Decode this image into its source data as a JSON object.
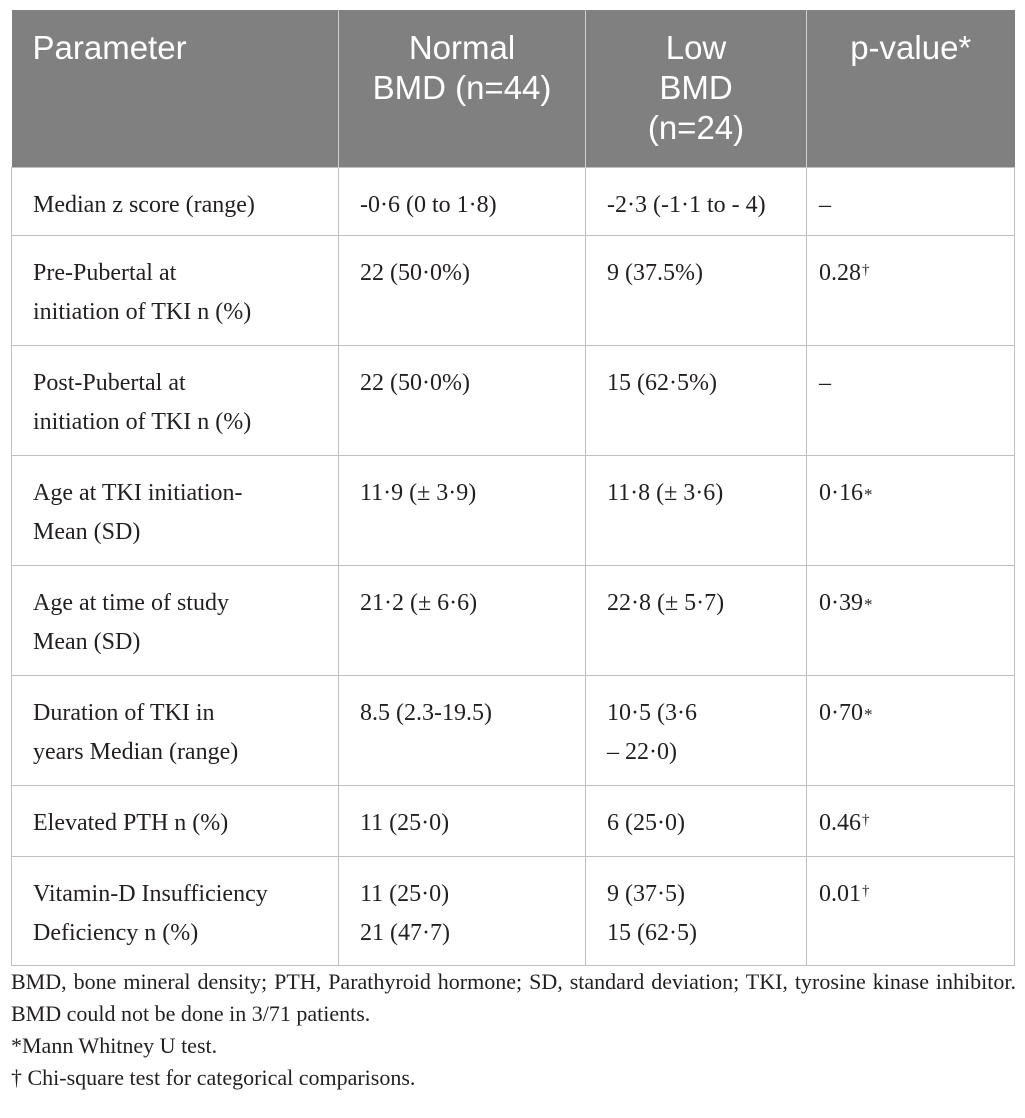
{
  "table": {
    "headers": [
      [
        "Parameter"
      ],
      [
        "Normal",
        "BMD (n=44)"
      ],
      [
        "Low",
        "BMD",
        "(n=24)"
      ],
      [
        "p-value*"
      ]
    ],
    "rows": [
      {
        "parameter": [
          "Median z score (range)"
        ],
        "normal": [
          "-0·6 (0 to 1·8)"
        ],
        "low": [
          "-2·3 (-1·1 to - 4)"
        ],
        "p_value": "–",
        "p_mark": ""
      },
      {
        "parameter": [
          "Pre-Pubertal at",
          "initiation of TKI n (%)"
        ],
        "normal": [
          "22 (50·0%)"
        ],
        "low": [
          "9 (37.5%)"
        ],
        "p_value": "0.28",
        "p_mark": "†"
      },
      {
        "parameter": [
          "Post-Pubertal at",
          "initiation of TKI n (%)"
        ],
        "normal": [
          "22 (50·0%)"
        ],
        "low": [
          "15 (62·5%)"
        ],
        "p_value": "–",
        "p_mark": ""
      },
      {
        "parameter": [
          "Age at TKI initiation-",
          "Mean (SD)"
        ],
        "normal": [
          "11·9 (± 3·9)"
        ],
        "low": [
          "11·8 (± 3·6)"
        ],
        "p_value": "0·16",
        "p_mark": "*"
      },
      {
        "parameter": [
          "Age at time of study",
          "Mean (SD)"
        ],
        "normal": [
          "21·2 (± 6·6)"
        ],
        "low": [
          "22·8 (± 5·7)"
        ],
        "p_value": "0·39",
        "p_mark": "*"
      },
      {
        "parameter": [
          "Duration of TKI in",
          "years Median (range)"
        ],
        "normal": [
          "8.5 (2.3-19.5)"
        ],
        "low": [
          "10·5 (3·6",
          "– 22·0)"
        ],
        "p_value": "0·70",
        "p_mark": "*"
      },
      {
        "parameter": [
          "Elevated PTH n (%)"
        ],
        "normal": [
          "11 (25·0)"
        ],
        "low": [
          "6 (25·0)"
        ],
        "p_value": "0.46",
        "p_mark": "†"
      },
      {
        "parameter": [
          "Vitamin-D Insufficiency",
          "Deficiency n (%)"
        ],
        "normal": [
          "11 (25·0)",
          "21 (47·7)"
        ],
        "low": [
          "9 (37·5)",
          "15 (62·5)"
        ],
        "p_value": "0.01",
        "p_mark": "†"
      }
    ]
  },
  "footnotes": {
    "abbreviations": "BMD, bone mineral density; PTH, Parathyroid hormone; SD, standard deviation; TKI, tyrosine kinase inhibitor. BMD could not be done in 3/71 patients.",
    "mann_whitney": "*Mann Whitney U test.",
    "chi_square": "† Chi-square test for categorical comparisons."
  }
}
